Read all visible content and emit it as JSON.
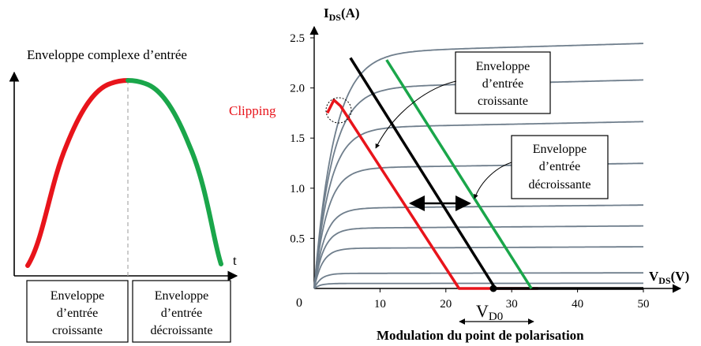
{
  "left_panel": {
    "title": "Enveloppe complexe d’entrée",
    "axis_label": "t",
    "box_left": [
      "Enveloppe",
      "d’entrée",
      "croissante"
    ],
    "box_right": [
      "Enveloppe",
      "d’entrée",
      "décroissante"
    ],
    "colors": {
      "rising": "#e8141b",
      "falling": "#1aa64a",
      "divider": "#aaaaaa"
    }
  },
  "right_panel": {
    "y_axis_label_main": "I",
    "y_axis_label_sub": "DS",
    "y_axis_label_unit": "(A)",
    "x_axis_label_main": "V",
    "x_axis_label_sub": "DS",
    "x_axis_label_unit": "(V)",
    "origin_label": "0",
    "clipping_label": "Clipping",
    "vd0_main": "V",
    "vd0_sub": "D0",
    "box_rising": [
      "Enveloppe",
      "d’entrée",
      "croissante"
    ],
    "box_falling": [
      "Enveloppe",
      "d’entrée",
      "décroissante"
    ],
    "bottom_caption": "Modulation du point de polarisation",
    "colors": {
      "curves": "#6f7e8c",
      "red": "#e8141b",
      "black": "#000000",
      "green": "#1aa64a"
    }
  },
  "chart_data": {
    "type": "line",
    "xlabel": "VDS (V)",
    "ylabel": "IDS (A)",
    "xlim": [
      0,
      50
    ],
    "ylim": [
      0,
      2.5
    ],
    "x_ticks": [
      "10",
      "20",
      "30",
      "40",
      "50"
    ],
    "y_ticks": [
      "0.5",
      "1.0",
      "1.5",
      "2.0",
      "2.5"
    ],
    "x_tick_values": [
      10,
      20,
      30,
      40,
      50
    ],
    "y_tick_values": [
      0.5,
      1.0,
      1.5,
      2.0,
      2.5
    ],
    "curve_saturation_currents": [
      0.05,
      0.15,
      0.4,
      0.6,
      0.8,
      1.2,
      1.6,
      2.0,
      2.35
    ],
    "load_lines": [
      {
        "name": "red",
        "points": [
          [
            2,
            1.75
          ],
          [
            3,
            1.88
          ],
          [
            4,
            1.82
          ],
          [
            22,
            0
          ],
          [
            34,
            0
          ]
        ]
      },
      {
        "name": "black",
        "points": [
          [
            5.5,
            2.3
          ],
          [
            27.5,
            0
          ],
          [
            50,
            0
          ]
        ]
      },
      {
        "name": "green",
        "points": [
          [
            11,
            2.28
          ],
          [
            33,
            0
          ]
        ]
      }
    ],
    "vd0": 27.5
  }
}
